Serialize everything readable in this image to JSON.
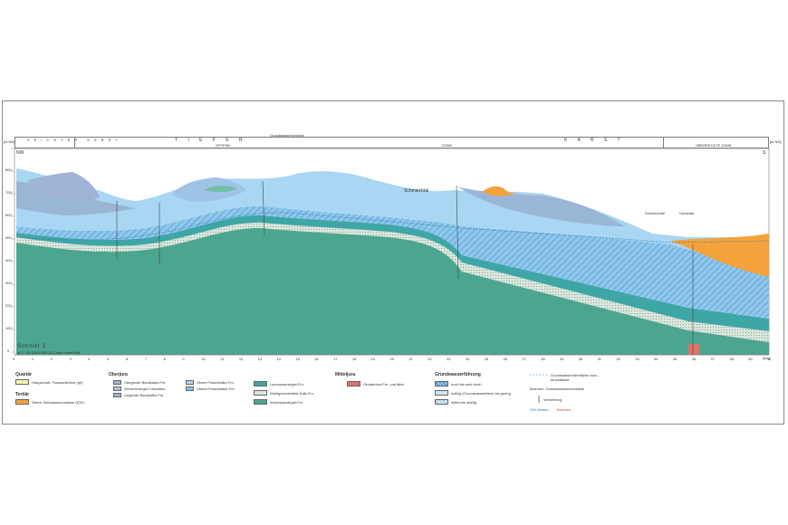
{
  "header": {
    "zone_1": "SEICHTER KARST",
    "zone_2": "T I E F E R",
    "zone_3": "K A R S T",
    "sub_offene": "OFFENE",
    "sub_zone": "ZONE",
    "sub_ueberdeckte": "ÜBERDECKTE ZONE",
    "boundary": "Grundwasserscheide"
  },
  "axis": {
    "unit_left": "[m NN]",
    "unit_right": "[m NN]",
    "unit_km": "[km]",
    "y_ticks": [
      "800",
      "700",
      "600",
      "500",
      "400",
      "300",
      "200",
      "100",
      "0"
    ],
    "x_ticks": [
      "0",
      "1",
      "2",
      "3",
      "4",
      "5",
      "6",
      "7",
      "8",
      "9",
      "10",
      "11",
      "12",
      "13",
      "14",
      "15",
      "16",
      "17",
      "18",
      "19",
      "20",
      "21",
      "22",
      "23",
      "24",
      "25",
      "26",
      "27",
      "28",
      "29",
      "30",
      "31",
      "32",
      "33",
      "34",
      "35",
      "36",
      "37",
      "38",
      "39",
      "40"
    ]
  },
  "ends": {
    "left": "NW",
    "right": "S"
  },
  "places": {
    "schmiechtal": "Schmiechtal",
    "schmiechtal_2": "Schmiechtal",
    "donautal": "Donautal"
  },
  "title": {
    "name": "Schnitt 2",
    "scale": "M 1 : 50 000/1:500 (10,0fach überhöht)"
  },
  "legend": {
    "quartaer": {
      "heading": "Quartär",
      "item": "Hangschutt, Flusssediment (qh)"
    },
    "tertiaer": {
      "heading": "Tertiär",
      "item": "Obere Süßwassermolasse (tOS)"
    },
    "oberjura": {
      "heading": "Oberjura",
      "items": [
        "Hangende Bankkalke-Fm.",
        "Zementmergel-Formation",
        "Liegende Bankkalke-Fm.",
        "Obere Felsenkalke-Fm.",
        "Untere Felsenkalke-Fm.",
        "Lacunosamergel-Fm.",
        "Wohlgeschichtete-Kalk-Fm.",
        "Impressamergel-Fm."
      ],
      "codes": [
        "joHB",
        "joZ",
        "joLB",
        "joFO",
        "joFU",
        "joL",
        "joW",
        "joI"
      ]
    },
    "mitteljura": {
      "heading": "Mitteljura",
      "item": "Ornatenton-Fm. und älter"
    },
    "grundwasser": {
      "heading": "Grundwasserführung",
      "items": [
        "hoch bis sehr hoch",
        "mäßig (Grundwasserleiter) bis gering",
        "mittel bis mäßig"
      ]
    },
    "symbols": [
      "Grundwasseroberfläche bzw. -druckfläche",
      "Brunnen, Grundwassermessstelle",
      "Verwerfung"
    ],
    "notes": {
      "blue": "GW-Niveau",
      "red": "Brunnen"
    }
  },
  "colors": {
    "tertiary": "#f4a23c",
    "upper_light": "#a9d6f2",
    "upper_mid": "#86c3ea",
    "upper_dark": "#9ab6d6",
    "marl": "#3fa6a6",
    "base": "#4ca58f",
    "mittel": "#e0716b",
    "light_band": "#dfe9e6"
  }
}
